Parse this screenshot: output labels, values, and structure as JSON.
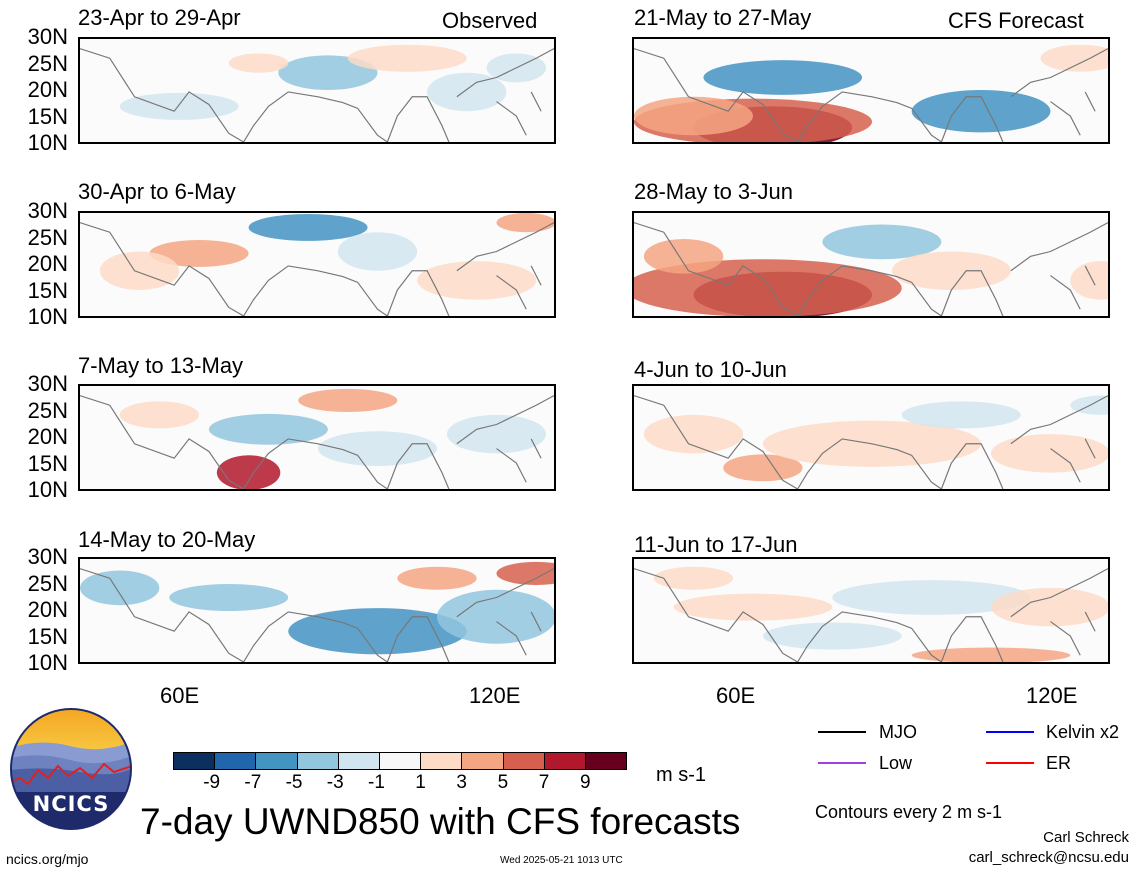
{
  "header": {
    "observed_label": "Observed",
    "forecast_label": "CFS Forecast"
  },
  "chart_data": {
    "type": "heatmap",
    "variable": "UWND850",
    "title": "7-day UWND850 with CFS forecasts",
    "units": "m s-1",
    "lat_ticks": [
      "30N",
      "25N",
      "20N",
      "15N",
      "10N"
    ],
    "lon_ticks": [
      "60E",
      "120E"
    ],
    "colorbar": {
      "labels": [
        "-9",
        "-7",
        "-5",
        "-3",
        "-1",
        "1",
        "3",
        "5",
        "7",
        "9"
      ],
      "colors": [
        "#0b2f5e",
        "#2166ac",
        "#4393c3",
        "#92c5de",
        "#d1e5f0",
        "#f7f7f7",
        "#fddbc7",
        "#f4a582",
        "#d6604d",
        "#b2182b",
        "#67001f"
      ]
    },
    "panels": [
      {
        "title": "23-Apr to 29-Apr",
        "source": "observed"
      },
      {
        "title": "30-Apr to 6-May",
        "source": "observed"
      },
      {
        "title": "7-May to 13-May",
        "source": "observed"
      },
      {
        "title": "14-May to 20-May",
        "source": "observed"
      },
      {
        "title": "21-May to 27-May",
        "source": "forecast"
      },
      {
        "title": "28-May to 3-Jun",
        "source": "forecast"
      },
      {
        "title": "4-Jun to 10-Jun",
        "source": "forecast"
      },
      {
        "title": "11-Jun to 17-Jun",
        "source": "forecast"
      }
    ],
    "legend": [
      {
        "name": "MJO",
        "color": "#000000"
      },
      {
        "name": "Kelvin x2",
        "color": "#0000ff"
      },
      {
        "name": "Low",
        "color": "#a040e0"
      },
      {
        "name": "ER",
        "color": "#ff0000"
      }
    ],
    "contour_note": "Contours every 2 m s-1"
  },
  "logo": {
    "text": "NCICS"
  },
  "footer": {
    "url": "ncics.org/mjo",
    "timestamp": "Wed 2025-05-21 1013 UTC",
    "author": "Carl Schreck",
    "email": "carl_schreck@ncsu.edu"
  }
}
